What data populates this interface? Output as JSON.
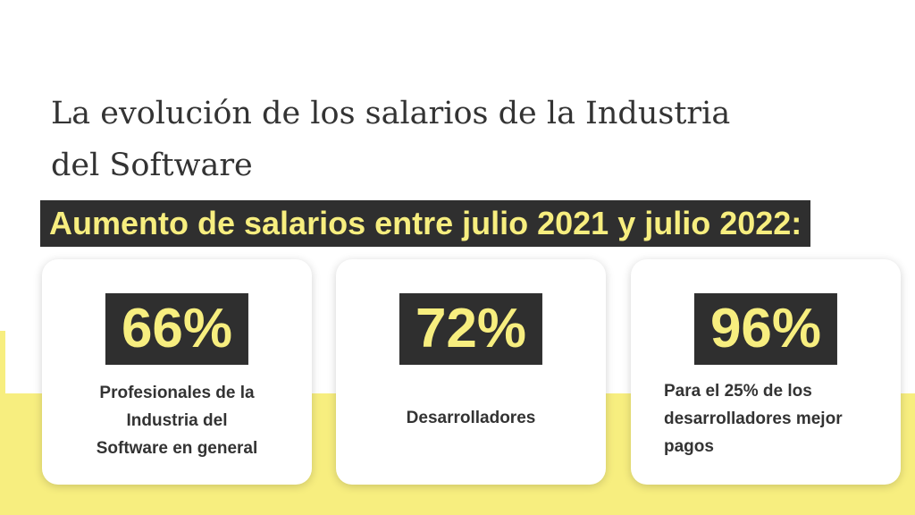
{
  "header": {
    "title_lines": [
      "La evolución de los salarios de la Industria",
      "del Software"
    ],
    "subtitle": "Aumento de salarios entre julio 2021 y julio 2022:"
  },
  "cards": [
    {
      "value": "66%",
      "description_lines": [
        "Profesionales de la",
        "Industria del",
        "Software en general"
      ]
    },
    {
      "value": "72%",
      "description_lines": [
        "Desarrolladores"
      ]
    },
    {
      "value": "96%",
      "description_lines": [
        "Para el 25% de los",
        "desarrolladores mejor",
        "pagos"
      ]
    }
  ],
  "colors": {
    "accent_yellow": "#f7ee7f",
    "dark": "#2f2f2f",
    "text": "#333333"
  }
}
